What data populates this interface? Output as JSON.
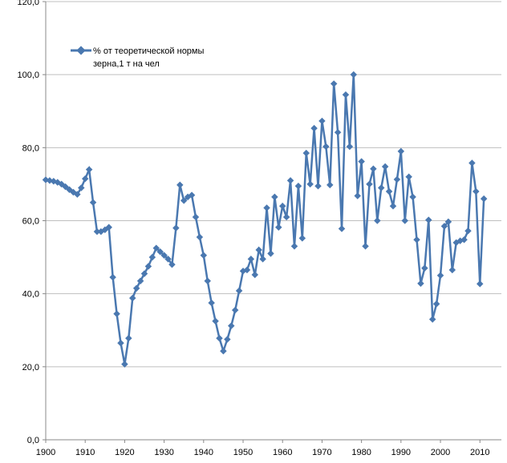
{
  "chart_data": {
    "type": "line",
    "series": [
      {
        "name": "% от теоретической  нормы зерна,1 т на чел",
        "color": "#4a78b0",
        "x": [
          1900,
          1901,
          1902,
          1903,
          1904,
          1905,
          1906,
          1907,
          1908,
          1909,
          1910,
          1911,
          1912,
          1913,
          1914,
          1915,
          1916,
          1917,
          1918,
          1919,
          1920,
          1921,
          1922,
          1923,
          1924,
          1925,
          1926,
          1927,
          1928,
          1929,
          1930,
          1931,
          1932,
          1933,
          1934,
          1935,
          1936,
          1937,
          1938,
          1939,
          1940,
          1941,
          1942,
          1943,
          1944,
          1945,
          1946,
          1947,
          1948,
          1949,
          1950,
          1951,
          1952,
          1953,
          1954,
          1955,
          1956,
          1957,
          1958,
          1959,
          1960,
          1961,
          1962,
          1963,
          1964,
          1965,
          1966,
          1967,
          1968,
          1969,
          1970,
          1971,
          1972,
          1973,
          1974,
          1975,
          1976,
          1977,
          1978,
          1979,
          1980,
          1981,
          1982,
          1983,
          1984,
          1985,
          1986,
          1987,
          1988,
          1989,
          1990,
          1991,
          1992,
          1993,
          1994,
          1995,
          1996,
          1997,
          1998,
          1999,
          2000,
          2001,
          2002,
          2003,
          2004,
          2005,
          2006,
          2007,
          2008,
          2009,
          2010,
          2011
        ],
        "values": [
          71.2,
          71,
          70.8,
          70.5,
          70,
          69.3,
          68.5,
          67.8,
          67.2,
          69,
          71.5,
          74,
          65,
          57,
          57,
          57.5,
          58.2,
          44.5,
          34.5,
          26.5,
          20.7,
          27.8,
          38.8,
          41.5,
          43.5,
          45.5,
          47.5,
          50,
          52.5,
          51.5,
          50.5,
          49.5,
          48,
          58,
          69.8,
          65.5,
          66.5,
          67,
          61,
          55.5,
          50.5,
          43.5,
          37.5,
          32.5,
          27.8,
          24.3,
          27.5,
          31.2,
          35.5,
          40.8,
          46.2,
          46.5,
          49.5,
          45.2,
          52,
          49.5,
          63.5,
          51,
          66.5,
          58.2,
          64,
          61,
          71,
          53,
          69.5,
          55.2,
          78.5,
          70,
          85.3,
          69.5,
          87.3,
          80.3,
          69.8,
          97.5,
          84.2,
          57.8,
          94.5,
          80.3,
          100,
          66.8,
          76.2,
          53,
          70,
          74.2,
          60,
          69,
          74.8,
          68,
          64,
          71.3,
          79,
          60,
          72,
          66.5,
          54.8,
          42.8,
          47,
          60.2,
          33,
          37.2,
          45,
          58.5,
          59.7,
          46.5,
          54,
          54.5,
          54.8,
          57.2,
          75.8,
          68,
          42.7,
          66
        ]
      }
    ],
    "xlim": [
      1900,
      2013
    ],
    "xticks": [
      1900,
      1910,
      1920,
      1930,
      1940,
      1950,
      1960,
      1970,
      1980,
      1990,
      2000,
      2010
    ],
    "ylim": [
      0,
      120
    ],
    "yticks": [
      {
        "value": 0,
        "label": "0,0"
      },
      {
        "value": 20,
        "label": "20,0"
      },
      {
        "value": 40,
        "label": "40,0"
      },
      {
        "value": 60,
        "label": "60,0"
      },
      {
        "value": 80,
        "label": "80,0"
      },
      {
        "value": 100,
        "label": "100,0"
      },
      {
        "value": 120,
        "label": "120,0"
      }
    ],
    "grid": true
  }
}
